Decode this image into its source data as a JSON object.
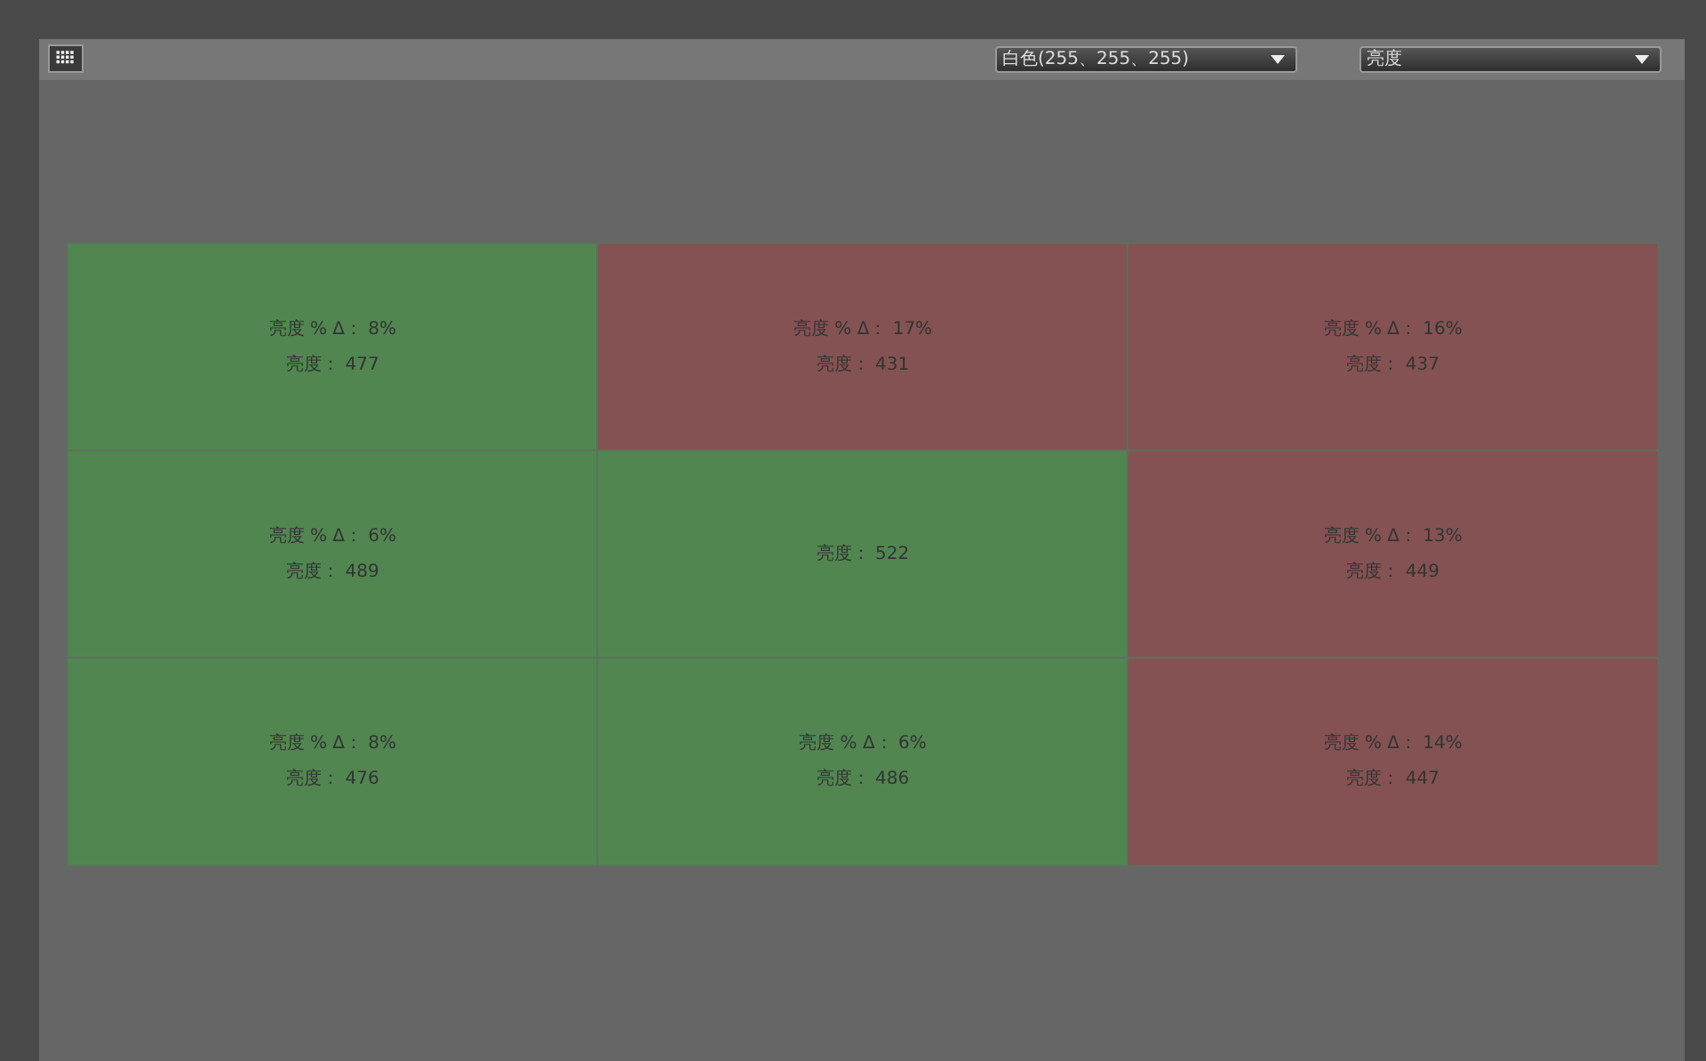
{
  "chart_data": {
    "type": "heatmap",
    "categories": [
      null,
      null,
      null
    ],
    "y_categories": [
      null,
      null,
      null
    ],
    "cells": [
      [
        477,
        431,
        437
      ],
      [
        489,
        522,
        449
      ],
      [
        476,
        486,
        447
      ]
    ],
    "cell_labels": [
      [
        "亮度： 477",
        "亮度： 431",
        "亮度： 437"
      ],
      [
        "亮度： 489",
        "亮度： 522",
        "亮度： 449"
      ],
      [
        "亮度： 476",
        "亮度： 486",
        "亮度： 447"
      ]
    ],
    "colors": [
      [
        "#518650",
        "#845252",
        "#845252"
      ],
      [
        "#518650",
        "#518650",
        "#845252"
      ],
      [
        "#518650",
        "#518650",
        "#845252"
      ]
    ],
    "annotations": [
      "白色(255、255、255)",
      "亮度",
      {
        "text": "亮度 % Δ： 8%"
      },
      {
        "text": "亮度 % Δ： 17%"
      },
      {
        "text": "亮度 % Δ： 16%"
      },
      {
        "text": "亮度 % Δ： 6%"
      },
      null,
      {
        "text": "亮度 % Δ： 13%"
      },
      {
        "text": "亮度 % Δ： 8%"
      },
      {
        "text": "亮度 % Δ： 6%"
      },
      {
        "text": "亮度 % Δ： 14%"
      }
    ]
  }
}
